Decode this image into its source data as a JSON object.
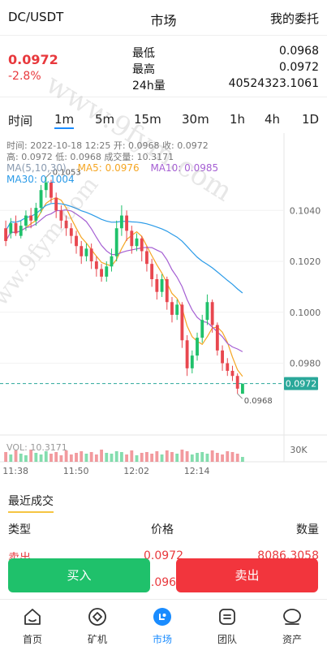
{
  "header": {
    "pair": "DC/USDT",
    "title": "市场",
    "orders_link": "我的委托"
  },
  "ticker": {
    "price": "0.0972",
    "change": "-2.8%",
    "stats": [
      {
        "label": "最低",
        "value": "0.0968"
      },
      {
        "label": "最高",
        "value": "0.0972"
      },
      {
        "label": "24h量",
        "value": "40524323.1061"
      }
    ]
  },
  "timeframes": {
    "label": "时间",
    "items": [
      "1m",
      "5m",
      "15m",
      "30m",
      "1h",
      "4h",
      "1D"
    ],
    "active": "1m"
  },
  "chart_info": {
    "line1": "时间: 2022-10-18 12:25    开: 0.0968    收: 0.0972",
    "line2": "高: 0.0972    低: 0.0968    成交量: 10.3171",
    "ma_label": "MA(5,10,30)",
    "ma30": "MA30: 0.1004",
    "ma5": "MA5: 0.0976",
    "ma10": "MA10: 0.0985",
    "vol_label": "VOL: 10.3171",
    "high_marker": "0.1053",
    "low_marker": "0.0968",
    "current_price_tag": "0.0972",
    "volume_axis_label": "30K"
  },
  "colors": {
    "up": "#1fc16b",
    "down": "#e8474f",
    "ma5": "#f5a623",
    "ma10": "#a55fd3",
    "ma30": "#2b9be8",
    "price_line": "#2aa89a",
    "accent": "#1a8cff"
  },
  "chart_data": {
    "type": "candlestick",
    "y_ticks": [
      "0.1040",
      "0.1020",
      "0.1000",
      "0.0980"
    ],
    "y_range": [
      0.0962,
      0.1064
    ],
    "x_ticks": [
      "11:38",
      "11:50",
      "12:02",
      "12:14"
    ],
    "candles": [
      [
        0.1033,
        0.1028,
        0.1036,
        0.1026
      ],
      [
        0.1031,
        0.1035,
        0.1037,
        0.1029
      ],
      [
        0.1035,
        0.1031,
        0.1038,
        0.103
      ],
      [
        0.103,
        0.1034,
        0.1036,
        0.1029
      ],
      [
        0.1034,
        0.1038,
        0.104,
        0.1032
      ],
      [
        0.1038,
        0.1036,
        0.1041,
        0.1033
      ],
      [
        0.1036,
        0.1041,
        0.1043,
        0.1034
      ],
      [
        0.1041,
        0.1048,
        0.105,
        0.1039
      ],
      [
        0.1048,
        0.1051,
        0.1053,
        0.1045
      ],
      [
        0.1051,
        0.1045,
        0.1052,
        0.1043
      ],
      [
        0.1045,
        0.104,
        0.1047,
        0.1037
      ],
      [
        0.104,
        0.1036,
        0.1042,
        0.1033
      ],
      [
        0.1036,
        0.1033,
        0.1038,
        0.103
      ],
      [
        0.1033,
        0.103,
        0.1035,
        0.1027
      ],
      [
        0.103,
        0.1026,
        0.1032,
        0.1023
      ],
      [
        0.1026,
        0.1022,
        0.1028,
        0.1019
      ],
      [
        0.1022,
        0.1025,
        0.1027,
        0.102
      ],
      [
        0.1025,
        0.102,
        0.1027,
        0.1017
      ],
      [
        0.102,
        0.1017,
        0.1022,
        0.1014
      ],
      [
        0.1017,
        0.1014,
        0.1019,
        0.1012
      ],
      [
        0.1014,
        0.1018,
        0.102,
        0.1012
      ],
      [
        0.1018,
        0.1022,
        0.1025,
        0.1016
      ],
      [
        0.1022,
        0.1033,
        0.1036,
        0.102
      ],
      [
        0.1033,
        0.1038,
        0.1042,
        0.103
      ],
      [
        0.1038,
        0.1032,
        0.104,
        0.1028
      ],
      [
        0.1032,
        0.1026,
        0.1034,
        0.1023
      ],
      [
        0.1026,
        0.1029,
        0.1031,
        0.1024
      ],
      [
        0.1029,
        0.1024,
        0.103,
        0.102
      ],
      [
        0.1024,
        0.1019,
        0.1026,
        0.1016
      ],
      [
        0.1019,
        0.1013,
        0.1021,
        0.101
      ],
      [
        0.1013,
        0.1008,
        0.1015,
        0.1005
      ],
      [
        0.1008,
        0.1013,
        0.1015,
        0.1006
      ],
      [
        0.1013,
        0.1004,
        0.1014,
        0.1001
      ],
      [
        0.1004,
        0.0999,
        0.1006,
        0.0996
      ],
      [
        0.0999,
        0.1003,
        0.1005,
        0.0997
      ],
      [
        0.1003,
        0.0989,
        0.1004,
        0.0986
      ],
      [
        0.0989,
        0.0978,
        0.0991,
        0.0975
      ],
      [
        0.0978,
        0.0983,
        0.0985,
        0.0976
      ],
      [
        0.0983,
        0.099,
        0.0992,
        0.0981
      ],
      [
        0.099,
        0.0997,
        0.0999,
        0.0988
      ],
      [
        0.0997,
        0.1004,
        0.1007,
        0.0995
      ],
      [
        0.1004,
        0.0995,
        0.1005,
        0.0992
      ],
      [
        0.0995,
        0.0985,
        0.0996,
        0.0983
      ],
      [
        0.0985,
        0.098,
        0.0987,
        0.0977
      ],
      [
        0.098,
        0.0977,
        0.0982,
        0.0975
      ],
      [
        0.0977,
        0.0975,
        0.0979,
        0.0973
      ],
      [
        0.0975,
        0.097,
        0.0976,
        0.0968
      ],
      [
        0.0968,
        0.0972,
        0.0972,
        0.0968
      ]
    ],
    "volumes": [
      12,
      9,
      14,
      10,
      8,
      15,
      11,
      9,
      13,
      10,
      12,
      8,
      14,
      9,
      11,
      13,
      10,
      12,
      9,
      15,
      11,
      10,
      13,
      12,
      9,
      14,
      8,
      11,
      12,
      10,
      13,
      9,
      14,
      12,
      10,
      15,
      13,
      9,
      11,
      12,
      10,
      14,
      11,
      9,
      13,
      12,
      10,
      6
    ],
    "volume_max": 30
  },
  "recent_trades": {
    "tab_label": "最近成交",
    "headers": {
      "type": "类型",
      "price": "价格",
      "amount": "数量"
    },
    "rows": [
      {
        "type": "卖出",
        "price": "0.0972",
        "amount": "8086.3058"
      },
      {
        "type": "",
        "price": "0.0968",
        "amount": ""
      }
    ]
  },
  "actions": {
    "buy": "买入",
    "sell": "卖出"
  },
  "tabbar": {
    "items": [
      {
        "label": "首页",
        "icon": "home-icon"
      },
      {
        "label": "矿机",
        "icon": "miner-icon"
      },
      {
        "label": "市场",
        "icon": "market-icon"
      },
      {
        "label": "团队",
        "icon": "team-icon"
      },
      {
        "label": "资产",
        "icon": "assets-icon"
      }
    ],
    "active": "市场"
  },
  "watermark": "www.9fym.com"
}
